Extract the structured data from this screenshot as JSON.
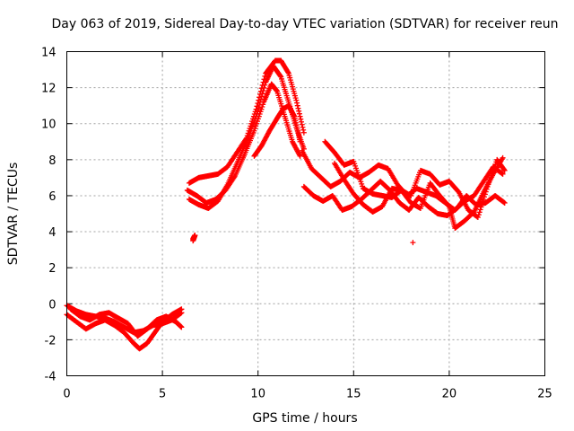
{
  "chart_data": {
    "type": "scatter",
    "title": "Day 063 of 2019, Sidereal Day-to-day VTEC variation (SDTVAR) for receiver reun",
    "xlabel": "GPS time / hours",
    "ylabel": "SDTVAR / TECUs",
    "xlim": [
      0,
      25
    ],
    "ylim": [
      -4,
      14
    ],
    "xticks": [
      0,
      5,
      10,
      15,
      20,
      25
    ],
    "yticks": [
      -4,
      -2,
      0,
      2,
      4,
      6,
      8,
      10,
      12,
      14
    ],
    "xtick_labels": [
      "0",
      "5",
      "10",
      "15",
      "20",
      "25"
    ],
    "ytick_labels": [
      "-4",
      "-2",
      "0",
      "2",
      "4",
      "6",
      "8",
      "10",
      "12",
      "14"
    ],
    "grid": true,
    "marker": "+",
    "series": [
      {
        "name": "SDTVAR",
        "color": "#ff0000",
        "tracks": [
          [
            [
              0.0,
              -0.1
            ],
            [
              0.5,
              -0.4
            ],
            [
              1.0,
              -0.6
            ],
            [
              1.5,
              -0.7
            ],
            [
              2.0,
              -0.8
            ],
            [
              2.5,
              -1.0
            ],
            [
              3.0,
              -1.3
            ],
            [
              3.5,
              -1.6
            ],
            [
              4.0,
              -1.5
            ],
            [
              4.5,
              -1.2
            ],
            [
              5.0,
              -1.1
            ],
            [
              5.5,
              -0.9
            ],
            [
              6.0,
              -0.5
            ]
          ],
          [
            [
              0.0,
              -0.6
            ],
            [
              0.5,
              -1.0
            ],
            [
              1.0,
              -1.4
            ],
            [
              1.5,
              -1.1
            ],
            [
              2.0,
              -0.9
            ],
            [
              2.5,
              -1.2
            ],
            [
              3.0,
              -1.6
            ],
            [
              3.5,
              -2.2
            ],
            [
              3.8,
              -2.5
            ],
            [
              4.2,
              -2.2
            ],
            [
              4.6,
              -1.6
            ],
            [
              5.0,
              -1.0
            ],
            [
              5.5,
              -0.6
            ],
            [
              6.0,
              -0.3
            ]
          ],
          [
            [
              0.2,
              -0.3
            ],
            [
              0.7,
              -0.7
            ],
            [
              1.2,
              -0.9
            ],
            [
              1.7,
              -0.6
            ],
            [
              2.2,
              -0.5
            ],
            [
              2.7,
              -0.8
            ],
            [
              3.2,
              -1.1
            ],
            [
              3.7,
              -1.8
            ],
            [
              4.2,
              -1.4
            ],
            [
              4.7,
              -0.9
            ],
            [
              5.2,
              -0.7
            ],
            [
              5.7,
              -1.0
            ],
            [
              6.0,
              -1.3
            ]
          ],
          [
            [
              6.6,
              3.5
            ],
            [
              6.7,
              3.8
            ],
            [
              6.6,
              3.6
            ]
          ],
          [
            [
              6.3,
              6.3
            ],
            [
              6.8,
              6.0
            ],
            [
              7.3,
              5.6
            ],
            [
              7.8,
              5.8
            ],
            [
              8.3,
              6.3
            ],
            [
              8.8,
              7.1
            ],
            [
              9.3,
              8.3
            ],
            [
              9.8,
              9.6
            ],
            [
              10.3,
              11.2
            ],
            [
              10.7,
              12.2
            ],
            [
              11.0,
              11.8
            ],
            [
              11.4,
              10.4
            ],
            [
              11.8,
              9.0
            ],
            [
              12.2,
              8.2
            ]
          ],
          [
            [
              6.4,
              5.8
            ],
            [
              6.9,
              5.5
            ],
            [
              7.4,
              5.3
            ],
            [
              7.9,
              5.7
            ],
            [
              8.4,
              6.6
            ],
            [
              8.9,
              7.8
            ],
            [
              9.4,
              9.0
            ],
            [
              9.9,
              10.4
            ],
            [
              10.4,
              12.3
            ],
            [
              10.8,
              13.2
            ],
            [
              11.2,
              12.6
            ],
            [
              11.6,
              11.2
            ],
            [
              12.0,
              9.8
            ],
            [
              12.4,
              8.6
            ]
          ],
          [
            [
              6.4,
              6.7
            ],
            [
              6.9,
              7.0
            ],
            [
              7.4,
              7.1
            ],
            [
              7.9,
              7.2
            ],
            [
              8.4,
              7.6
            ],
            [
              8.9,
              8.4
            ],
            [
              9.4,
              9.2
            ],
            [
              9.9,
              10.8
            ],
            [
              10.4,
              12.8
            ],
            [
              10.9,
              13.5
            ],
            [
              11.2,
              13.5
            ],
            [
              11.6,
              12.8
            ],
            [
              12.0,
              11.3
            ],
            [
              12.4,
              9.5
            ]
          ],
          [
            [
              9.8,
              8.2
            ],
            [
              10.2,
              8.8
            ],
            [
              10.6,
              9.6
            ],
            [
              11.0,
              10.3
            ],
            [
              11.3,
              10.8
            ],
            [
              11.6,
              11.0
            ],
            [
              11.9,
              10.4
            ],
            [
              12.2,
              9.0
            ]
          ],
          [
            [
              12.3,
              8.5
            ],
            [
              12.8,
              7.5
            ],
            [
              13.3,
              7.0
            ],
            [
              13.8,
              6.5
            ],
            [
              14.3,
              6.8
            ],
            [
              14.8,
              7.3
            ],
            [
              15.3,
              7.0
            ],
            [
              15.8,
              7.3
            ],
            [
              16.3,
              7.7
            ],
            [
              16.8,
              7.5
            ],
            [
              17.3,
              6.6
            ],
            [
              17.8,
              6.0
            ],
            [
              18.3,
              6.4
            ],
            [
              18.8,
              6.2
            ],
            [
              19.3,
              6.0
            ],
            [
              19.8,
              5.6
            ],
            [
              20.3,
              5.2
            ],
            [
              20.8,
              5.7
            ],
            [
              21.3,
              6.0
            ],
            [
              21.8,
              6.8
            ],
            [
              22.3,
              7.6
            ],
            [
              22.8,
              7.2
            ]
          ],
          [
            [
              12.4,
              6.5
            ],
            [
              12.9,
              6.0
            ],
            [
              13.4,
              5.7
            ],
            [
              13.9,
              6.0
            ],
            [
              14.4,
              5.2
            ],
            [
              14.9,
              5.4
            ],
            [
              15.4,
              5.8
            ],
            [
              15.9,
              6.3
            ],
            [
              16.4,
              6.8
            ],
            [
              16.9,
              6.3
            ],
            [
              17.4,
              5.6
            ],
            [
              17.9,
              5.2
            ],
            [
              18.4,
              5.9
            ],
            [
              18.9,
              5.4
            ],
            [
              19.4,
              5.0
            ],
            [
              19.9,
              4.9
            ],
            [
              20.4,
              5.3
            ],
            [
              20.9,
              6.0
            ],
            [
              21.4,
              5.5
            ],
            [
              21.9,
              5.6
            ],
            [
              22.4,
              6.0
            ],
            [
              22.9,
              5.6
            ]
          ],
          [
            [
              13.5,
              9.0
            ],
            [
              14.0,
              8.4
            ],
            [
              14.5,
              7.7
            ],
            [
              15.0,
              7.9
            ],
            [
              15.5,
              6.4
            ],
            [
              16.0,
              6.1
            ],
            [
              16.5,
              6.0
            ],
            [
              17.0,
              5.9
            ],
            [
              17.5,
              6.3
            ],
            [
              18.0,
              6.0
            ],
            [
              18.5,
              7.4
            ],
            [
              19.0,
              7.2
            ],
            [
              19.5,
              6.6
            ],
            [
              20.0,
              6.8
            ],
            [
              20.5,
              6.2
            ],
            [
              21.0,
              5.2
            ],
            [
              21.5,
              4.8
            ],
            [
              22.0,
              6.5
            ],
            [
              22.5,
              8.0
            ],
            [
              22.9,
              7.4
            ]
          ],
          [
            [
              14.0,
              7.8
            ],
            [
              14.5,
              6.9
            ],
            [
              15.0,
              6.1
            ],
            [
              15.5,
              5.5
            ],
            [
              16.0,
              5.1
            ],
            [
              16.5,
              5.4
            ],
            [
              17.0,
              6.4
            ],
            [
              17.5,
              6.3
            ],
            [
              18.0,
              5.6
            ],
            [
              18.5,
              5.3
            ],
            [
              19.0,
              6.7
            ],
            [
              19.5,
              6.0
            ],
            [
              20.0,
              5.4
            ],
            [
              20.3,
              4.2
            ],
            [
              20.8,
              4.6
            ],
            [
              21.3,
              5.1
            ],
            [
              21.8,
              6.2
            ],
            [
              22.3,
              7.2
            ],
            [
              22.8,
              8.1
            ]
          ],
          [
            [
              18.1,
              3.4
            ]
          ]
        ]
      }
    ]
  }
}
